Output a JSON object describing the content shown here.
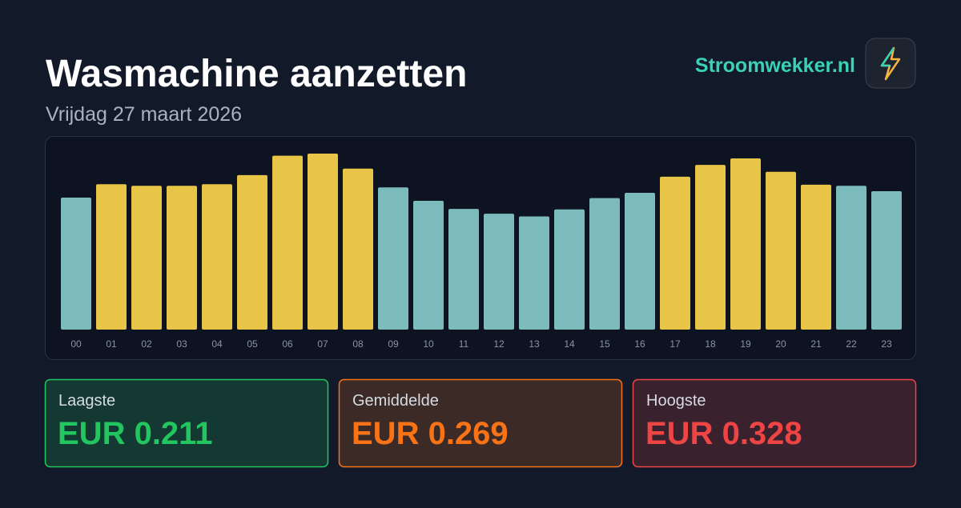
{
  "header": {
    "title": "Wasmachine aanzetten",
    "subtitle": "Vrijdag 27 maart 2026",
    "brand": "Stroomwekker.nl"
  },
  "chart_data": {
    "type": "bar",
    "categories": [
      "00",
      "01",
      "02",
      "03",
      "04",
      "05",
      "06",
      "07",
      "08",
      "09",
      "10",
      "11",
      "12",
      "13",
      "14",
      "15",
      "16",
      "17",
      "18",
      "19",
      "20",
      "21",
      "22",
      "23"
    ],
    "values": [
      0.246,
      0.271,
      0.268,
      0.268,
      0.271,
      0.288,
      0.324,
      0.328,
      0.3,
      0.265,
      0.24,
      0.225,
      0.216,
      0.211,
      0.224,
      0.245,
      0.255,
      0.285,
      0.307,
      0.319,
      0.294,
      0.27,
      0.268,
      0.258
    ],
    "colors": [
      "#7cbbbb",
      "#e8c547",
      "#e8c547",
      "#e8c547",
      "#e8c547",
      "#e8c547",
      "#e8c547",
      "#e8c547",
      "#e8c547",
      "#7cbbbb",
      "#7cbbbb",
      "#7cbbbb",
      "#7cbbbb",
      "#7cbbbb",
      "#7cbbbb",
      "#7cbbbb",
      "#7cbbbb",
      "#e8c547",
      "#e8c547",
      "#e8c547",
      "#e8c547",
      "#e8c547",
      "#7cbbbb",
      "#7cbbbb"
    ]
  },
  "stats": [
    {
      "label": "Laagste",
      "value": "EUR 0.211",
      "color": "#22c55e"
    },
    {
      "label": "Gemiddelde",
      "value": "EUR 0.269",
      "color": "#f97316"
    },
    {
      "label": "Hoogste",
      "value": "EUR 0.328",
      "color": "#ef4444"
    }
  ]
}
